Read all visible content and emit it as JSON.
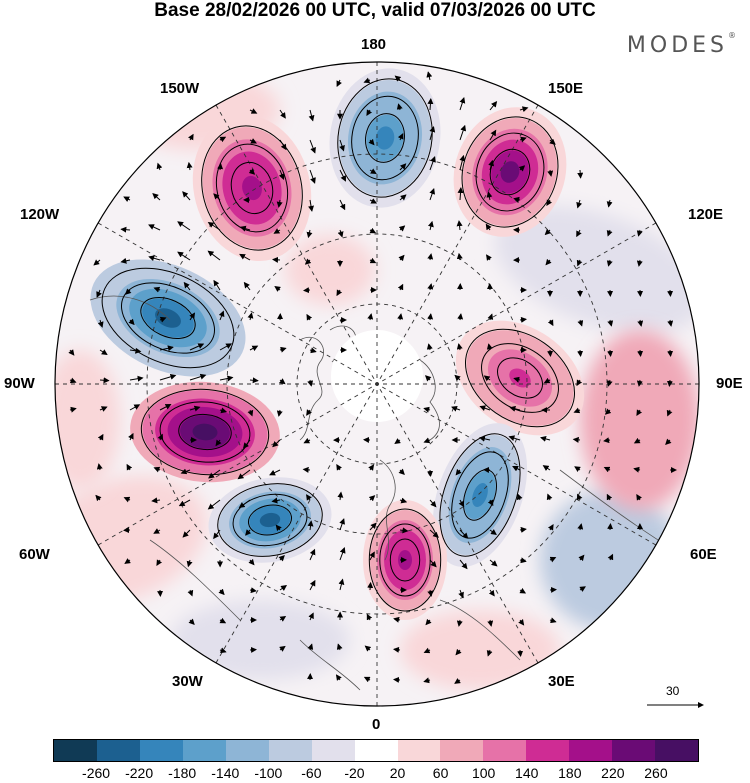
{
  "title": "Base 28/02/2026 00 UTC, valid 07/03/2026 00 UTC",
  "brand": "MODES",
  "brand_mark": "®",
  "longitude_labels": {
    "lon_180": "180",
    "lon_150w": "150W",
    "lon_150e": "150E",
    "lon_120w": "120W",
    "lon_120e": "120E",
    "lon_90w": "90W",
    "lon_90e": "90E",
    "lon_60w": "60W",
    "lon_60e": "60E",
    "lon_30w": "30W",
    "lon_30e": "30E",
    "lon_0": "0"
  },
  "reference_vector": "30",
  "colorbar": {
    "ticks": [
      "-260",
      "-220",
      "-180",
      "-140",
      "-100",
      "-60",
      "-20",
      "20",
      "60",
      "100",
      "140",
      "180",
      "220",
      "260"
    ],
    "colors": [
      "#103a55",
      "#1c6090",
      "#3585bb",
      "#5da0cb",
      "#8eb5d6",
      "#bccbe0",
      "#e2e0ec",
      "#ffffff",
      "#f9d7d9",
      "#f0a9b8",
      "#e672a8",
      "#cf2c94",
      "#a4108a",
      "#6a0b75",
      "#470f63"
    ]
  },
  "features": {
    "anomaly_north_pacific_150w": 200,
    "anomaly_bering_180": -200,
    "anomaly_kamchatka_150e": 220,
    "anomaly_canada_west_110w": -250,
    "anomaly_hudson_80w": 260,
    "anomaly_labrador_55w": -230,
    "anomaly_siberia_90e": 150,
    "anomaly_ural_60e": -200,
    "anomaly_scandinavia_20e": 200
  }
}
